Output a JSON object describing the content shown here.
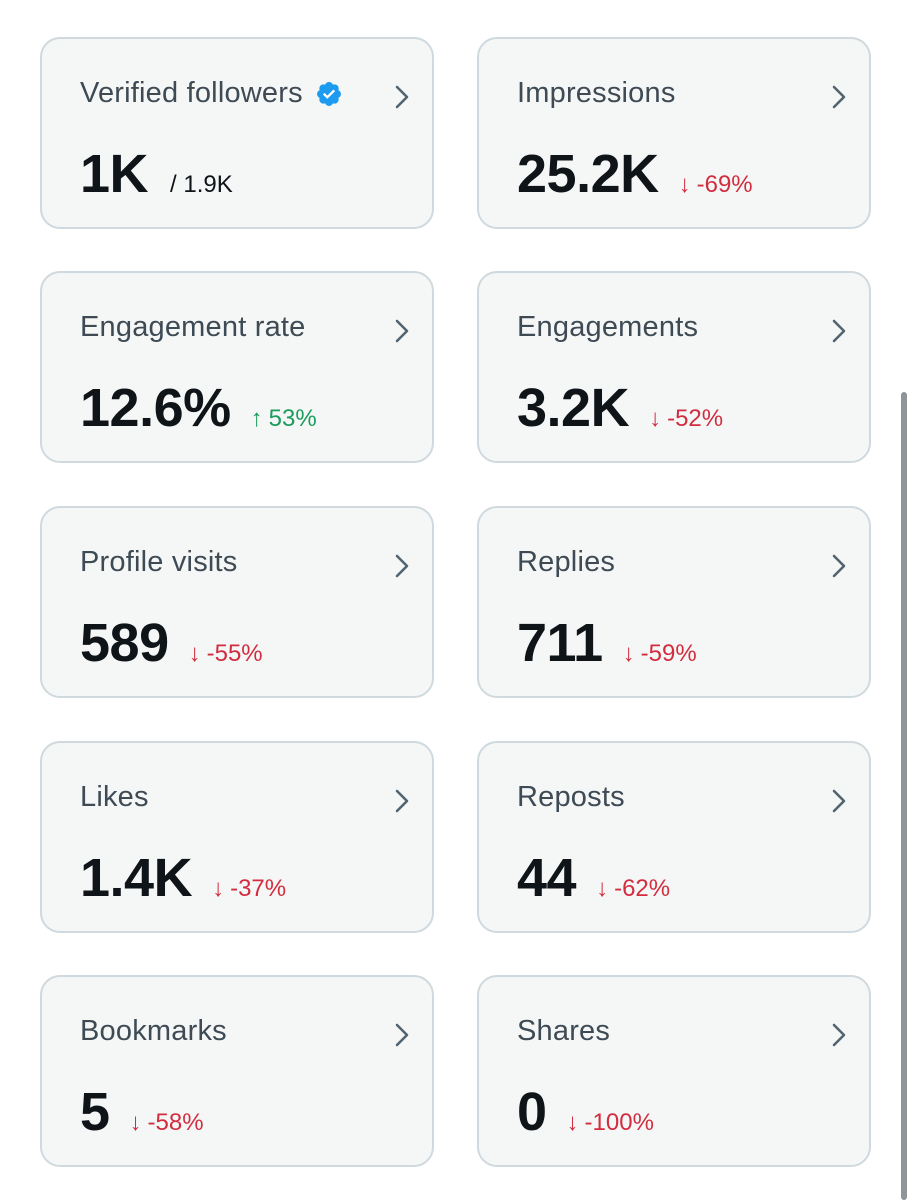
{
  "accent_colors": {
    "down": "#d22d3f",
    "up": "#1a9c5c",
    "verified": "#1d9bf0"
  },
  "cards": [
    {
      "title": "Verified followers",
      "value": "1K",
      "sub_value": "/ 1.9K",
      "icon": "verified-badge-icon"
    },
    {
      "title": "Impressions",
      "value": "25.2K",
      "change": "-69%",
      "direction": "down"
    },
    {
      "title": "Engagement rate",
      "value": "12.6%",
      "change": "53%",
      "direction": "up"
    },
    {
      "title": "Engagements",
      "value": "3.2K",
      "change": "-52%",
      "direction": "down"
    },
    {
      "title": "Profile visits",
      "value": "589",
      "change": "-55%",
      "direction": "down"
    },
    {
      "title": "Replies",
      "value": "711",
      "change": "-59%",
      "direction": "down"
    },
    {
      "title": "Likes",
      "value": "1.4K",
      "change": "-37%",
      "direction": "down"
    },
    {
      "title": "Reposts",
      "value": "44",
      "change": "-62%",
      "direction": "down"
    },
    {
      "title": "Bookmarks",
      "value": "5",
      "change": "-58%",
      "direction": "down"
    },
    {
      "title": "Shares",
      "value": "0",
      "change": "-100%",
      "direction": "down"
    }
  ],
  "arrows": {
    "up": "↑",
    "down": "↓"
  }
}
